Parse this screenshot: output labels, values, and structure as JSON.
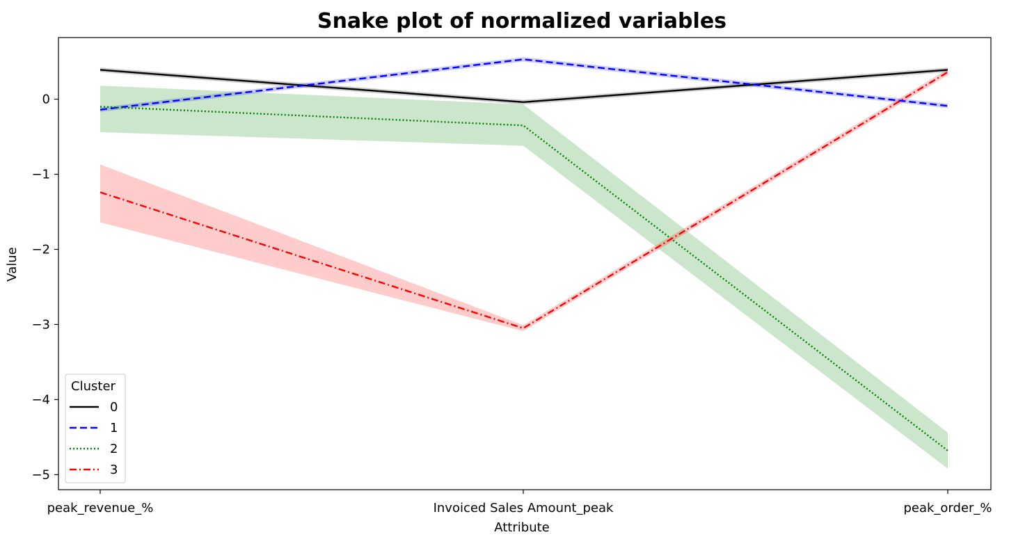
{
  "chart_data": {
    "type": "line",
    "title": "Snake plot of normalized variables",
    "xlabel": "Attribute",
    "ylabel": "Value",
    "categories": [
      "peak_revenue_%",
      "Invoiced Sales Amount_peak",
      "peak_order_%"
    ],
    "ylim": [
      -5.2,
      0.82
    ],
    "yticks": [
      0,
      -1,
      -2,
      -3,
      -4,
      -5
    ],
    "ytick_labels": [
      "0",
      "−1",
      "−2",
      "−3",
      "−4",
      "−5"
    ],
    "grid": false,
    "legend": {
      "title": "Cluster",
      "placement": "lower-left"
    },
    "series": [
      {
        "name": "0",
        "color": "#000000",
        "dash": "solid",
        "values": [
          0.39,
          -0.04,
          0.39
        ],
        "ci_low": [
          0.36,
          -0.07,
          0.36
        ],
        "ci_high": [
          0.42,
          -0.01,
          0.42
        ]
      },
      {
        "name": "1",
        "color": "#0000ff",
        "dash": "dashed",
        "values": [
          -0.14,
          0.53,
          -0.09
        ],
        "ci_low": [
          -0.17,
          0.5,
          -0.12
        ],
        "ci_high": [
          -0.11,
          0.56,
          -0.06
        ]
      },
      {
        "name": "2",
        "color": "#008000",
        "dash": "dotted",
        "values": [
          -0.1,
          -0.35,
          -4.68
        ],
        "ci_low": [
          -0.44,
          -0.62,
          -4.92
        ],
        "ci_high": [
          0.18,
          -0.07,
          -4.44
        ]
      },
      {
        "name": "3",
        "color": "#ff0000",
        "dash": "dashdot",
        "values": [
          -1.24,
          -3.05,
          0.36
        ],
        "ci_low": [
          -1.64,
          -3.09,
          0.32
        ],
        "ci_high": [
          -0.87,
          -3.01,
          0.4
        ]
      }
    ]
  }
}
